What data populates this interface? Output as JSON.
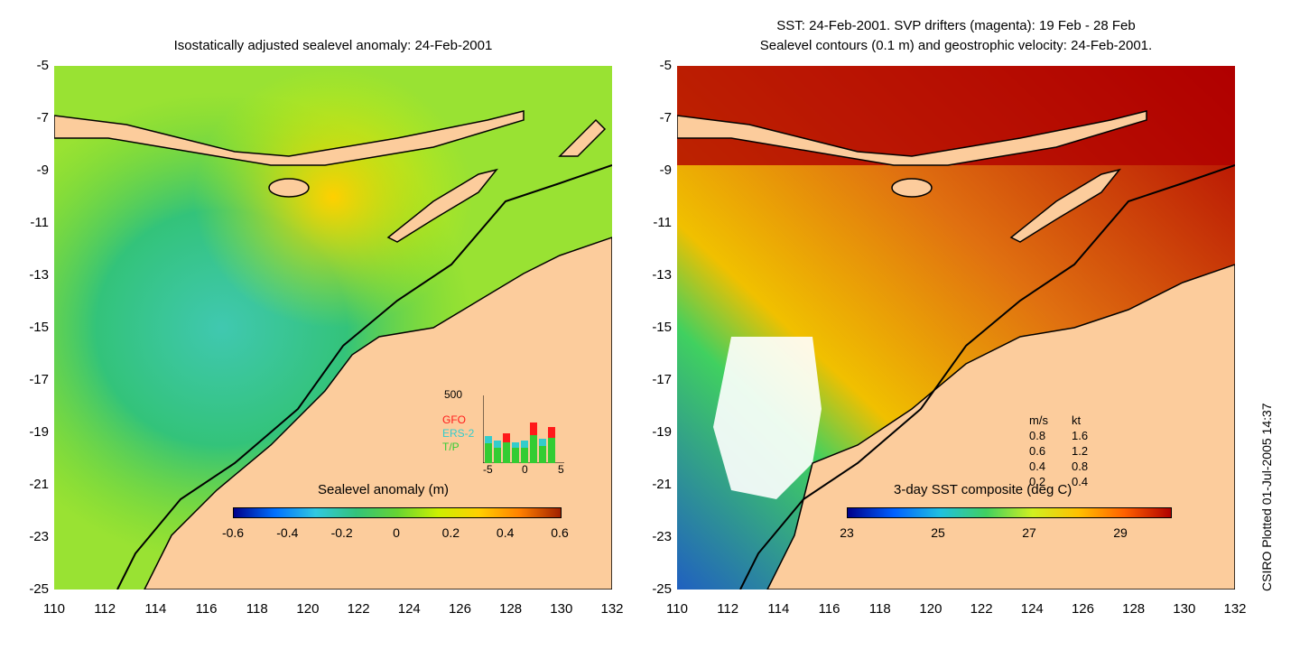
{
  "left_panel": {
    "title": "Isostatically adjusted sealevel anomaly: 24-Feb-2001",
    "colorbar_label": "Sealevel anomaly (m)",
    "colorbar_ticks": [
      "-0.6",
      "-0.4",
      "-0.2",
      "0",
      "0.2",
      "0.4",
      "0.6"
    ],
    "histogram": {
      "ymax_label": "500",
      "x_ticks": [
        "-5",
        "0",
        "5"
      ],
      "legend": [
        {
          "name": "GFO",
          "color": "#ff1a1a"
        },
        {
          "name": "ERS-2",
          "color": "#33cccc"
        },
        {
          "name": "T/P",
          "color": "#33cc33"
        }
      ]
    }
  },
  "right_panel": {
    "title_line1": "SST: 24-Feb-2001. SVP drifters (magenta): 19 Feb - 28 Feb",
    "title_line2": "Sealevel contours (0.1 m) and geostrophic velocity: 24-Feb-2001.",
    "colorbar_label": "3-day SST composite (deg C)",
    "colorbar_ticks": [
      "23",
      "25",
      "27",
      "29"
    ],
    "velocity_legend": {
      "header_ms": "m/s",
      "header_kt": "kt",
      "rows": [
        {
          "ms": "0.8",
          "kt": "1.6"
        },
        {
          "ms": "0.6",
          "kt": "1.2"
        },
        {
          "ms": "0.4",
          "kt": "0.8"
        },
        {
          "ms": "0.2",
          "kt": "0.4"
        }
      ]
    }
  },
  "axes": {
    "y_ticks": [
      "-5",
      "-7",
      "-9",
      "-11",
      "-13",
      "-15",
      "-17",
      "-19",
      "-21",
      "-23",
      "-25"
    ],
    "x_ticks": [
      "110",
      "112",
      "114",
      "116",
      "118",
      "120",
      "122",
      "124",
      "126",
      "128",
      "130",
      "132"
    ]
  },
  "credit": "CSIRO Plotted 01-Jul-2005 14:37",
  "colors": {
    "land": "#fccc9c",
    "sla_colormap": [
      "#00008b",
      "#0090ff",
      "#30c8e0",
      "#33c37a",
      "#66d433",
      "#ccf000",
      "#ffd000",
      "#ff8000",
      "#a02000"
    ],
    "sst_colormap": [
      "#00008b",
      "#0060ff",
      "#20c0e0",
      "#40d060",
      "#d0f020",
      "#ffc000",
      "#ff6000",
      "#b00000"
    ]
  }
}
